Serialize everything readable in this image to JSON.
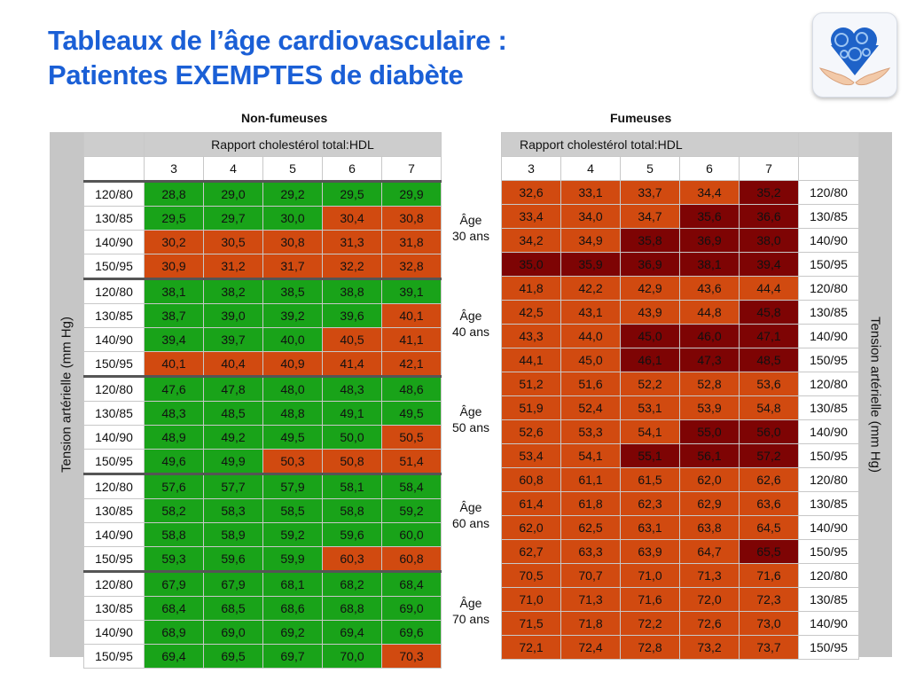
{
  "title": {
    "line1": "Tableaux de l’âge cardiovasculaire :",
    "line2": "Patientes EXEMPTES de diabète"
  },
  "logo_icon": "heart-of-gears-in-hands-icon",
  "colors": {
    "title": "#1a5fd6",
    "green": "#19a319",
    "orange": "#d14a10",
    "dark_red": "#7e0404",
    "header_gray": "#cdcdcd"
  },
  "left": {
    "group_title": "Non-fumeuses",
    "header": "Rapport cholestérol total:HDL",
    "columns": [
      "3",
      "4",
      "5",
      "6",
      "7"
    ],
    "side_label": "Tension artérielle (mm Hg)"
  },
  "right": {
    "group_title": "Fumeuses",
    "header": "Rapport cholestérol total:HDL",
    "columns": [
      "3",
      "4",
      "5",
      "6",
      "7"
    ],
    "side_label": "Tension artérielle (mm Hg)"
  },
  "age_groups": [
    {
      "label_line1": "Âge",
      "label_line2": "30 ans",
      "rows": [
        {
          "bp": "120/80",
          "non_smoker": [
            "28,8",
            "29,0",
            "29,2",
            "29,5",
            "29,9"
          ],
          "non_smoker_level": [
            "g",
            "g",
            "g",
            "g",
            "g"
          ],
          "smoker": [
            "32,6",
            "33,1",
            "33,7",
            "34,4",
            "35,2"
          ],
          "smoker_level": [
            "o",
            "o",
            "o",
            "o",
            "r"
          ]
        },
        {
          "bp": "130/85",
          "non_smoker": [
            "29,5",
            "29,7",
            "30,0",
            "30,4",
            "30,8"
          ],
          "non_smoker_level": [
            "g",
            "g",
            "g",
            "o",
            "o"
          ],
          "smoker": [
            "33,4",
            "34,0",
            "34,7",
            "35,6",
            "36,6"
          ],
          "smoker_level": [
            "o",
            "o",
            "o",
            "r",
            "r"
          ]
        },
        {
          "bp": "140/90",
          "non_smoker": [
            "30,2",
            "30,5",
            "30,8",
            "31,3",
            "31,8"
          ],
          "non_smoker_level": [
            "o",
            "o",
            "o",
            "o",
            "o"
          ],
          "smoker": [
            "34,2",
            "34,9",
            "35,8",
            "36,9",
            "38,0"
          ],
          "smoker_level": [
            "o",
            "o",
            "r",
            "r",
            "r"
          ]
        },
        {
          "bp": "150/95",
          "non_smoker": [
            "30,9",
            "31,2",
            "31,7",
            "32,2",
            "32,8"
          ],
          "non_smoker_level": [
            "o",
            "o",
            "o",
            "o",
            "o"
          ],
          "smoker": [
            "35,0",
            "35,9",
            "36,9",
            "38,1",
            "39,4"
          ],
          "smoker_level": [
            "r",
            "r",
            "r",
            "r",
            "r"
          ]
        }
      ]
    },
    {
      "label_line1": "Âge",
      "label_line2": "40 ans",
      "rows": [
        {
          "bp": "120/80",
          "non_smoker": [
            "38,1",
            "38,2",
            "38,5",
            "38,8",
            "39,1"
          ],
          "non_smoker_level": [
            "g",
            "g",
            "g",
            "g",
            "g"
          ],
          "smoker": [
            "41,8",
            "42,2",
            "42,9",
            "43,6",
            "44,4"
          ],
          "smoker_level": [
            "o",
            "o",
            "o",
            "o",
            "o"
          ]
        },
        {
          "bp": "130/85",
          "non_smoker": [
            "38,7",
            "39,0",
            "39,2",
            "39,6",
            "40,1"
          ],
          "non_smoker_level": [
            "g",
            "g",
            "g",
            "g",
            "o"
          ],
          "smoker": [
            "42,5",
            "43,1",
            "43,9",
            "44,8",
            "45,8"
          ],
          "smoker_level": [
            "o",
            "o",
            "o",
            "o",
            "r"
          ]
        },
        {
          "bp": "140/90",
          "non_smoker": [
            "39,4",
            "39,7",
            "40,0",
            "40,5",
            "41,1"
          ],
          "non_smoker_level": [
            "g",
            "g",
            "g",
            "o",
            "o"
          ],
          "smoker": [
            "43,3",
            "44,0",
            "45,0",
            "46,0",
            "47,1"
          ],
          "smoker_level": [
            "o",
            "o",
            "r",
            "r",
            "r"
          ]
        },
        {
          "bp": "150/95",
          "non_smoker": [
            "40,1",
            "40,4",
            "40,9",
            "41,4",
            "42,1"
          ],
          "non_smoker_level": [
            "o",
            "o",
            "o",
            "o",
            "o"
          ],
          "smoker": [
            "44,1",
            "45,0",
            "46,1",
            "47,3",
            "48,5"
          ],
          "smoker_level": [
            "o",
            "o",
            "r",
            "r",
            "r"
          ]
        }
      ]
    },
    {
      "label_line1": "Âge",
      "label_line2": "50 ans",
      "rows": [
        {
          "bp": "120/80",
          "non_smoker": [
            "47,6",
            "47,8",
            "48,0",
            "48,3",
            "48,6"
          ],
          "non_smoker_level": [
            "g",
            "g",
            "g",
            "g",
            "g"
          ],
          "smoker": [
            "51,2",
            "51,6",
            "52,2",
            "52,8",
            "53,6"
          ],
          "smoker_level": [
            "o",
            "o",
            "o",
            "o",
            "o"
          ]
        },
        {
          "bp": "130/85",
          "non_smoker": [
            "48,3",
            "48,5",
            "48,8",
            "49,1",
            "49,5"
          ],
          "non_smoker_level": [
            "g",
            "g",
            "g",
            "g",
            "g"
          ],
          "smoker": [
            "51,9",
            "52,4",
            "53,1",
            "53,9",
            "54,8"
          ],
          "smoker_level": [
            "o",
            "o",
            "o",
            "o",
            "o"
          ]
        },
        {
          "bp": "140/90",
          "non_smoker": [
            "48,9",
            "49,2",
            "49,5",
            "50,0",
            "50,5"
          ],
          "non_smoker_level": [
            "g",
            "g",
            "g",
            "g",
            "o"
          ],
          "smoker": [
            "52,6",
            "53,3",
            "54,1",
            "55,0",
            "56,0"
          ],
          "smoker_level": [
            "o",
            "o",
            "o",
            "r",
            "r"
          ]
        },
        {
          "bp": "150/95",
          "non_smoker": [
            "49,6",
            "49,9",
            "50,3",
            "50,8",
            "51,4"
          ],
          "non_smoker_level": [
            "g",
            "g",
            "o",
            "o",
            "o"
          ],
          "smoker": [
            "53,4",
            "54,1",
            "55,1",
            "56,1",
            "57,2"
          ],
          "smoker_level": [
            "o",
            "o",
            "r",
            "r",
            "r"
          ]
        }
      ]
    },
    {
      "label_line1": "Âge",
      "label_line2": "60 ans",
      "rows": [
        {
          "bp": "120/80",
          "non_smoker": [
            "57,6",
            "57,7",
            "57,9",
            "58,1",
            "58,4"
          ],
          "non_smoker_level": [
            "g",
            "g",
            "g",
            "g",
            "g"
          ],
          "smoker": [
            "60,8",
            "61,1",
            "61,5",
            "62,0",
            "62,6"
          ],
          "smoker_level": [
            "o",
            "o",
            "o",
            "o",
            "o"
          ]
        },
        {
          "bp": "130/85",
          "non_smoker": [
            "58,2",
            "58,3",
            "58,5",
            "58,8",
            "59,2"
          ],
          "non_smoker_level": [
            "g",
            "g",
            "g",
            "g",
            "g"
          ],
          "smoker": [
            "61,4",
            "61,8",
            "62,3",
            "62,9",
            "63,6"
          ],
          "smoker_level": [
            "o",
            "o",
            "o",
            "o",
            "o"
          ]
        },
        {
          "bp": "140/90",
          "non_smoker": [
            "58,8",
            "58,9",
            "59,2",
            "59,6",
            "60,0"
          ],
          "non_smoker_level": [
            "g",
            "g",
            "g",
            "g",
            "g"
          ],
          "smoker": [
            "62,0",
            "62,5",
            "63,1",
            "63,8",
            "64,5"
          ],
          "smoker_level": [
            "o",
            "o",
            "o",
            "o",
            "o"
          ]
        },
        {
          "bp": "150/95",
          "non_smoker": [
            "59,3",
            "59,6",
            "59,9",
            "60,3",
            "60,8"
          ],
          "non_smoker_level": [
            "g",
            "g",
            "g",
            "o",
            "o"
          ],
          "smoker": [
            "62,7",
            "63,3",
            "63,9",
            "64,7",
            "65,5"
          ],
          "smoker_level": [
            "o",
            "o",
            "o",
            "o",
            "r"
          ]
        }
      ]
    },
    {
      "label_line1": "Âge",
      "label_line2": "70 ans",
      "rows": [
        {
          "bp": "120/80",
          "non_smoker": [
            "67,9",
            "67,9",
            "68,1",
            "68,2",
            "68,4"
          ],
          "non_smoker_level": [
            "g",
            "g",
            "g",
            "g",
            "g"
          ],
          "smoker": [
            "70,5",
            "70,7",
            "71,0",
            "71,3",
            "71,6"
          ],
          "smoker_level": [
            "o",
            "o",
            "o",
            "o",
            "o"
          ]
        },
        {
          "bp": "130/85",
          "non_smoker": [
            "68,4",
            "68,5",
            "68,6",
            "68,8",
            "69,0"
          ],
          "non_smoker_level": [
            "g",
            "g",
            "g",
            "g",
            "g"
          ],
          "smoker": [
            "71,0",
            "71,3",
            "71,6",
            "72,0",
            "72,3"
          ],
          "smoker_level": [
            "o",
            "o",
            "o",
            "o",
            "o"
          ]
        },
        {
          "bp": "140/90",
          "non_smoker": [
            "68,9",
            "69,0",
            "69,2",
            "69,4",
            "69,6"
          ],
          "non_smoker_level": [
            "g",
            "g",
            "g",
            "g",
            "g"
          ],
          "smoker": [
            "71,5",
            "71,8",
            "72,2",
            "72,6",
            "73,0"
          ],
          "smoker_level": [
            "o",
            "o",
            "o",
            "o",
            "o"
          ]
        },
        {
          "bp": "150/95",
          "non_smoker": [
            "69,4",
            "69,5",
            "69,7",
            "70,0",
            "70,3"
          ],
          "non_smoker_level": [
            "g",
            "g",
            "g",
            "g",
            "o"
          ],
          "smoker": [
            "72,1",
            "72,4",
            "72,8",
            "73,2",
            "73,7"
          ],
          "smoker_level": [
            "o",
            "o",
            "o",
            "o",
            "o"
          ]
        }
      ]
    }
  ]
}
